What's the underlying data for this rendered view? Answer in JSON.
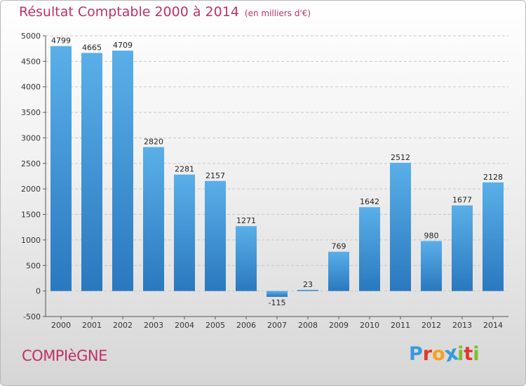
{
  "header": {
    "title": "Résultat Comptable 2000 à 2014",
    "subtitle": "(en milliers d'€)"
  },
  "footer": {
    "city": "COMPIèGNE",
    "brand_letters": [
      "P",
      "r",
      "o",
      "x",
      "i",
      "t",
      "i"
    ],
    "brand_colors": [
      "#3a9ad9",
      "#e2382c",
      "#f4a21b",
      "#3a9ad9",
      "#7cbf2a",
      "#e2382c",
      "#7cbf2a"
    ]
  },
  "colors": {
    "bar_top": "#5aafe8",
    "bar_bottom": "#2a78bf",
    "title": "#c0306a",
    "grid": "#c8c8c8"
  },
  "chart_data": {
    "type": "bar",
    "title": "Résultat Comptable 2000 à 2014",
    "subtitle": "(en milliers d'€)",
    "categories": [
      "2000",
      "2001",
      "2002",
      "2003",
      "2004",
      "2005",
      "2006",
      "2007",
      "2008",
      "2009",
      "2010",
      "2011",
      "2012",
      "2013",
      "2014"
    ],
    "values": [
      4799,
      4665,
      4709,
      2820,
      2281,
      2157,
      1271,
      -115,
      23,
      769,
      1642,
      2512,
      980,
      1677,
      2128
    ],
    "ylim": [
      -500,
      5000
    ],
    "yticks": [
      -500,
      0,
      500,
      1000,
      1500,
      2000,
      2500,
      3000,
      3500,
      4000,
      4500,
      5000
    ],
    "grid": "horizontal dashed",
    "legend": "none"
  }
}
